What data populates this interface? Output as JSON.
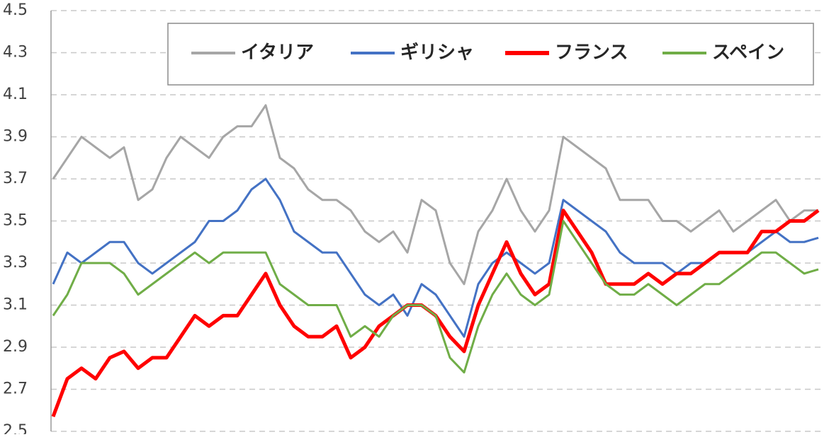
{
  "chart_data": {
    "type": "line",
    "categories": [
      null,
      null,
      null,
      null,
      null,
      null,
      null,
      null,
      null,
      null,
      null,
      null,
      null,
      null,
      null,
      null,
      null,
      null,
      null,
      null,
      null,
      null,
      null,
      null,
      null,
      null,
      null,
      null,
      null,
      null,
      null,
      null,
      null,
      null,
      null,
      null,
      null,
      null,
      null,
      null,
      null,
      null,
      null,
      null,
      null,
      null,
      null,
      null,
      null,
      null,
      null,
      null,
      null,
      null,
      null
    ],
    "series": [
      {
        "name": "イタリア",
        "color": "#a6a6a6",
        "values": [
          3.7,
          3.8,
          3.9,
          3.85,
          3.8,
          3.85,
          3.6,
          3.65,
          3.8,
          3.9,
          3.85,
          3.8,
          3.9,
          3.95,
          3.95,
          4.05,
          3.8,
          3.75,
          3.65,
          3.6,
          3.6,
          3.55,
          3.45,
          3.4,
          3.45,
          3.35,
          3.6,
          3.55,
          3.3,
          3.2,
          3.45,
          3.55,
          3.7,
          3.55,
          3.45,
          3.55,
          3.9,
          3.85,
          3.8,
          3.75,
          3.6,
          3.6,
          3.6,
          3.5,
          3.5,
          3.45,
          3.5,
          3.55,
          3.45,
          3.5,
          3.55,
          3.6,
          3.5,
          3.55,
          3.55
        ]
      },
      {
        "name": "ギリシャ",
        "color": "#4472c4",
        "values": [
          3.2,
          3.35,
          3.3,
          3.35,
          3.4,
          3.4,
          3.3,
          3.25,
          3.3,
          3.35,
          3.4,
          3.5,
          3.5,
          3.55,
          3.65,
          3.7,
          3.6,
          3.45,
          3.4,
          3.35,
          3.35,
          3.25,
          3.15,
          3.1,
          3.15,
          3.05,
          3.2,
          3.15,
          3.05,
          2.95,
          3.2,
          3.3,
          3.35,
          3.3,
          3.25,
          3.3,
          3.6,
          3.55,
          3.5,
          3.45,
          3.35,
          3.3,
          3.3,
          3.3,
          3.25,
          3.3,
          3.3,
          3.35,
          3.35,
          3.35,
          3.4,
          3.45,
          3.4,
          3.4,
          3.42
        ]
      },
      {
        "name": "フランス",
        "color": "#ff0000",
        "values": [
          2.57,
          2.75,
          2.8,
          2.75,
          2.85,
          2.88,
          2.8,
          2.85,
          2.85,
          2.95,
          3.05,
          3.0,
          3.05,
          3.05,
          3.15,
          3.25,
          3.1,
          3.0,
          2.95,
          2.95,
          3.0,
          2.85,
          2.9,
          3.0,
          3.05,
          3.1,
          3.1,
          3.05,
          2.95,
          2.88,
          3.1,
          3.25,
          3.4,
          3.25,
          3.15,
          3.2,
          3.55,
          3.45,
          3.35,
          3.2,
          3.2,
          3.2,
          3.25,
          3.2,
          3.25,
          3.25,
          3.3,
          3.35,
          3.35,
          3.35,
          3.45,
          3.45,
          3.5,
          3.5,
          3.55
        ]
      },
      {
        "name": "スペイン",
        "color": "#70ad47",
        "values": [
          3.05,
          3.15,
          3.3,
          3.3,
          3.3,
          3.25,
          3.15,
          3.2,
          3.25,
          3.3,
          3.35,
          3.3,
          3.35,
          3.35,
          3.35,
          3.35,
          3.2,
          3.15,
          3.1,
          3.1,
          3.1,
          2.95,
          3.0,
          2.95,
          3.05,
          3.1,
          3.1,
          3.05,
          2.85,
          2.78,
          3.0,
          3.15,
          3.25,
          3.15,
          3.1,
          3.15,
          3.5,
          3.4,
          3.3,
          3.2,
          3.15,
          3.15,
          3.2,
          3.15,
          3.1,
          3.15,
          3.2,
          3.2,
          3.25,
          3.3,
          3.35,
          3.35,
          3.3,
          3.25,
          3.27
        ]
      }
    ],
    "ylim": [
      2.5,
      4.5
    ],
    "yticks": [
      2.5,
      2.7,
      2.9,
      3.1,
      3.3,
      3.5,
      3.7,
      3.9,
      4.1,
      4.3,
      4.5
    ],
    "grid": true
  }
}
